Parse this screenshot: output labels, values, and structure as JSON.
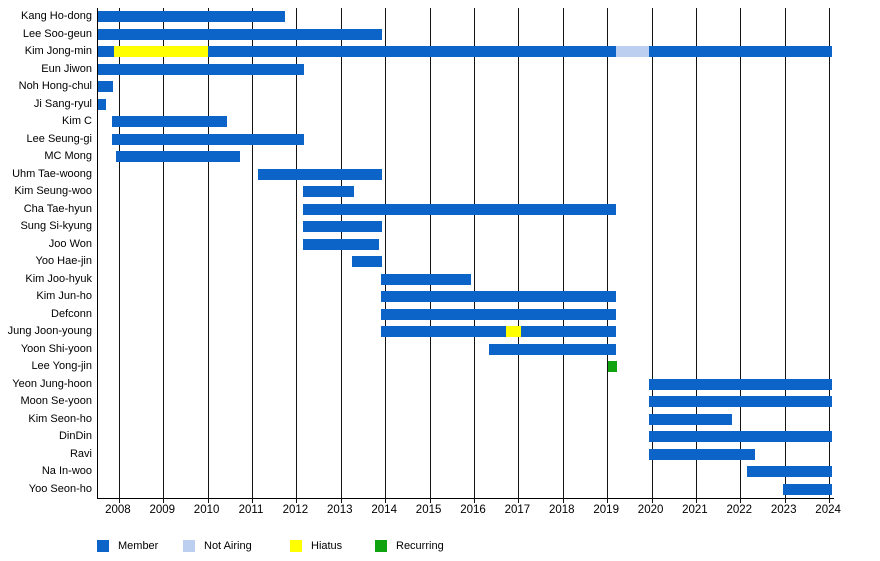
{
  "chart_data": {
    "type": "bar",
    "subtype": "gantt-timeline",
    "title": "",
    "xlabel": "",
    "ylabel": "",
    "grid": true,
    "legend_position": "bottom",
    "x_axis": {
      "start": 2007.53,
      "end": 2024.11,
      "ticks": [
        2008,
        2009,
        2010,
        2011,
        2012,
        2013,
        2014,
        2015,
        2016,
        2017,
        2018,
        2019,
        2020,
        2021,
        2022,
        2023,
        2024
      ]
    },
    "colors": {
      "member": "#0C64C8",
      "not_airing": "#BCCFF0",
      "hiatus": "#FFFF00",
      "recurring": "#0FA30F"
    },
    "legend": [
      {
        "key": "member",
        "label": "Member"
      },
      {
        "key": "not_airing",
        "label": "Not Airing"
      },
      {
        "key": "hiatus",
        "label": "Hiatus"
      },
      {
        "key": "recurring",
        "label": "Recurring"
      }
    ],
    "rows": [
      {
        "name": "Kang Ho-dong",
        "segments": [
          {
            "start": 2007.53,
            "end": 2011.74,
            "status": "member"
          }
        ]
      },
      {
        "name": "Lee Soo-geun",
        "segments": [
          {
            "start": 2007.53,
            "end": 2013.92,
            "status": "member"
          }
        ]
      },
      {
        "name": "Kim Jong-min",
        "segments": [
          {
            "start": 2007.53,
            "end": 2007.89,
            "status": "member"
          },
          {
            "start": 2007.89,
            "end": 2010.0,
            "status": "hiatus"
          },
          {
            "start": 2010.0,
            "end": 2019.2,
            "status": "member"
          },
          {
            "start": 2019.2,
            "end": 2019.94,
            "status": "not_airing"
          },
          {
            "start": 2019.94,
            "end": 2024.07,
            "status": "member"
          }
        ]
      },
      {
        "name": "Eun Jiwon",
        "segments": [
          {
            "start": 2007.53,
            "end": 2012.16,
            "status": "member"
          }
        ]
      },
      {
        "name": "Noh Hong-chul",
        "segments": [
          {
            "start": 2007.53,
            "end": 2007.87,
            "status": "member"
          }
        ]
      },
      {
        "name": "Ji Sang-ryul",
        "segments": [
          {
            "start": 2007.53,
            "end": 2007.71,
            "status": "member"
          }
        ]
      },
      {
        "name": "Kim C",
        "segments": [
          {
            "start": 2007.84,
            "end": 2010.43,
            "status": "member"
          }
        ]
      },
      {
        "name": "Lee Seung-gi",
        "segments": [
          {
            "start": 2007.84,
            "end": 2012.16,
            "status": "member"
          }
        ]
      },
      {
        "name": "MC Mong",
        "segments": [
          {
            "start": 2007.93,
            "end": 2010.72,
            "status": "member"
          }
        ]
      },
      {
        "name": "Uhm Tae-woong",
        "segments": [
          {
            "start": 2011.14,
            "end": 2013.92,
            "status": "member"
          }
        ]
      },
      {
        "name": "Kim Seung-woo",
        "segments": [
          {
            "start": 2012.15,
            "end": 2013.29,
            "status": "member"
          }
        ]
      },
      {
        "name": "Cha Tae-hyun",
        "segments": [
          {
            "start": 2012.15,
            "end": 2019.21,
            "status": "member"
          }
        ]
      },
      {
        "name": "Sung Si-kyung",
        "segments": [
          {
            "start": 2012.15,
            "end": 2013.92,
            "status": "member"
          }
        ]
      },
      {
        "name": "Joo Won",
        "segments": [
          {
            "start": 2012.15,
            "end": 2013.85,
            "status": "member"
          }
        ]
      },
      {
        "name": "Yoo Hae-jin",
        "segments": [
          {
            "start": 2013.25,
            "end": 2013.92,
            "status": "member"
          }
        ]
      },
      {
        "name": "Kim Joo-hyuk",
        "segments": [
          {
            "start": 2013.9,
            "end": 2015.93,
            "status": "member"
          }
        ]
      },
      {
        "name": "Kim Jun-ho",
        "segments": [
          {
            "start": 2013.9,
            "end": 2019.2,
            "status": "member"
          }
        ]
      },
      {
        "name": "Defconn",
        "segments": [
          {
            "start": 2013.9,
            "end": 2019.2,
            "status": "member"
          }
        ]
      },
      {
        "name": "Jung Joon-young",
        "segments": [
          {
            "start": 2013.9,
            "end": 2016.73,
            "status": "member"
          },
          {
            "start": 2016.73,
            "end": 2017.05,
            "status": "hiatus"
          },
          {
            "start": 2017.05,
            "end": 2019.2,
            "status": "member"
          }
        ]
      },
      {
        "name": "Yoon Shi-yoon",
        "segments": [
          {
            "start": 2016.34,
            "end": 2019.2,
            "status": "member"
          }
        ]
      },
      {
        "name": "Lee Yong-jin",
        "segments": [
          {
            "start": 2019.01,
            "end": 2019.22,
            "status": "recurring"
          }
        ]
      },
      {
        "name": "Yeon Jung-hoon",
        "segments": [
          {
            "start": 2019.94,
            "end": 2024.07,
            "status": "member"
          }
        ]
      },
      {
        "name": "Moon Se-yoon",
        "segments": [
          {
            "start": 2019.94,
            "end": 2024.07,
            "status": "member"
          }
        ]
      },
      {
        "name": "Kim Seon-ho",
        "segments": [
          {
            "start": 2019.94,
            "end": 2021.82,
            "status": "member"
          }
        ]
      },
      {
        "name": "DinDin",
        "segments": [
          {
            "start": 2019.94,
            "end": 2024.07,
            "status": "member"
          }
        ]
      },
      {
        "name": "Ravi",
        "segments": [
          {
            "start": 2019.94,
            "end": 2022.33,
            "status": "member"
          }
        ]
      },
      {
        "name": "Na In-woo",
        "segments": [
          {
            "start": 2022.14,
            "end": 2024.07,
            "status": "member"
          }
        ]
      },
      {
        "name": "Yoo Seon-ho",
        "segments": [
          {
            "start": 2022.97,
            "end": 2024.07,
            "status": "member"
          }
        ]
      }
    ]
  }
}
